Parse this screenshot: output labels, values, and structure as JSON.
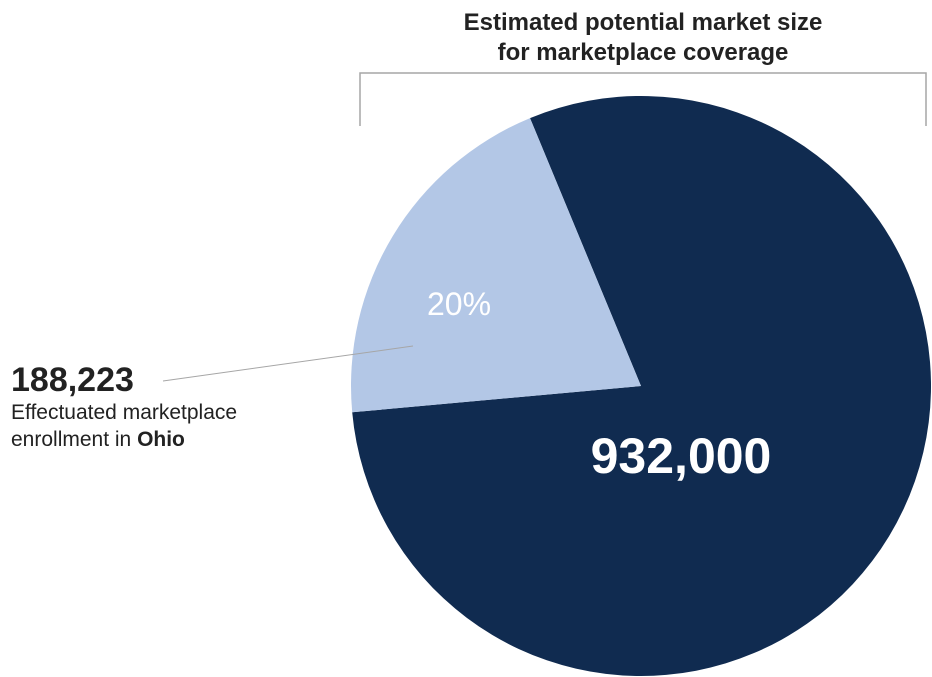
{
  "chart_data": {
    "type": "pie",
    "title_lines": [
      "Estimated potential market size",
      "for marketplace coverage"
    ],
    "total": 932000,
    "total_label": "932,000",
    "slices": [
      {
        "name": "",
        "value": 188223,
        "percent_label": "20%",
        "color": "#b3c7e6"
      },
      {
        "name": "",
        "value": 743777,
        "color": "#102b50"
      }
    ],
    "callout": {
      "value_label": "188,223",
      "desc_line1": "Effectuated marketplace",
      "desc_line2_prefix": "enrollment in ",
      "desc_line2_bold": "Ohio"
    }
  },
  "colors": {
    "highlight_slice": "#b3c7e6",
    "main_slice": "#102b50",
    "bracket": "#a6a6a6",
    "leader_line": "#a6a6a6"
  }
}
